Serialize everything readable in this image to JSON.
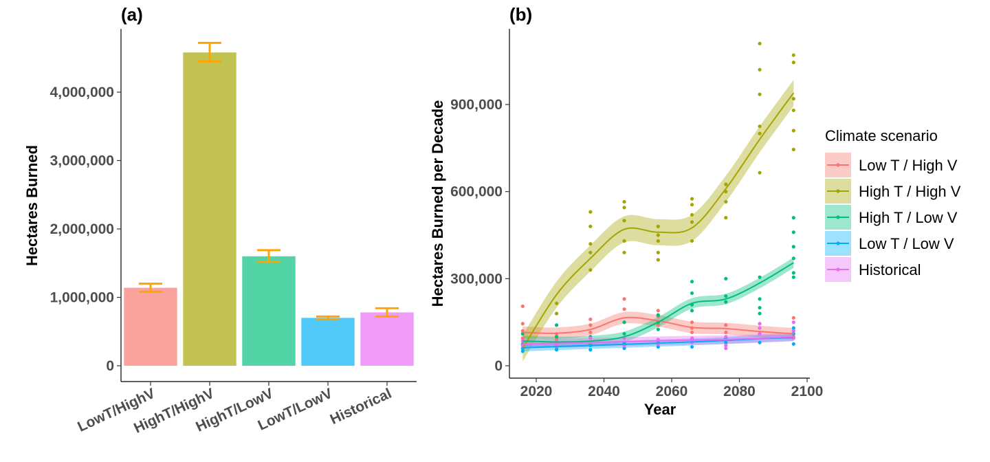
{
  "chart_data": [
    {
      "panel": "(a)",
      "type": "bar",
      "ylabel": "Hectares Burned",
      "xlabel": "",
      "categories": [
        "LowT/HighV",
        "HighT/HighV",
        "HighT/LowV",
        "LowT/LowV",
        "Historical"
      ],
      "values": [
        1140000,
        4580000,
        1600000,
        700000,
        780000
      ],
      "error_low": [
        1080000,
        4450000,
        1520000,
        680000,
        720000
      ],
      "error_high": [
        1200000,
        4720000,
        1690000,
        720000,
        840000
      ],
      "colors": [
        "#F8766D",
        "#A3A500",
        "#00BF7D",
        "#00B0F6",
        "#E76BF3"
      ],
      "error_color": "#FFA500",
      "ylim": [
        0,
        4850000
      ],
      "yticks": [
        0,
        1000000,
        2000000,
        3000000,
        4000000
      ],
      "yticklabels": [
        "0",
        "1,000,000",
        "2,000,000",
        "3,000,000",
        "4,000,000"
      ],
      "grid": false
    },
    {
      "panel": "(b)",
      "type": "scatter",
      "xlabel": "Year",
      "ylabel": "Hectares Burned per Decade",
      "xlim": [
        2012,
        2100
      ],
      "ylim": [
        -20000,
        1130000
      ],
      "xticks": [
        2020,
        2040,
        2060,
        2080,
        2100
      ],
      "yticks": [
        0,
        300000,
        600000,
        900000
      ],
      "yticklabels": [
        "0",
        "300,000",
        "600,000",
        "900,000"
      ],
      "legend_title": "Climate scenario",
      "legend_position": "right",
      "grid": false,
      "series": [
        {
          "name": "Low T / High V",
          "color": "#F8766D",
          "smooth": [
            [
              2016,
              115000
            ],
            [
              2026,
              112000
            ],
            [
              2036,
              125000
            ],
            [
              2046,
              165000
            ],
            [
              2056,
              155000
            ],
            [
              2066,
              132000
            ],
            [
              2076,
              128000
            ],
            [
              2086,
              118000
            ],
            [
              2096,
              110000
            ]
          ],
          "band": 20000,
          "points": [
            [
              2016,
              205000
            ],
            [
              2016,
              145000
            ],
            [
              2016,
              120000
            ],
            [
              2016,
              95000
            ],
            [
              2026,
              110000
            ],
            [
              2026,
              90000
            ],
            [
              2026,
              60000
            ],
            [
              2036,
              160000
            ],
            [
              2036,
              140000
            ],
            [
              2036,
              115000
            ],
            [
              2046,
              230000
            ],
            [
              2046,
              195000
            ],
            [
              2046,
              150000
            ],
            [
              2056,
              190000
            ],
            [
              2056,
              170000
            ],
            [
              2056,
              140000
            ],
            [
              2066,
              150000
            ],
            [
              2066,
              130000
            ],
            [
              2066,
              115000
            ],
            [
              2076,
              140000
            ],
            [
              2076,
              115000
            ],
            [
              2076,
              95000
            ],
            [
              2086,
              130000
            ],
            [
              2086,
              110000
            ],
            [
              2096,
              165000
            ],
            [
              2096,
              120000
            ],
            [
              2096,
              100000
            ]
          ]
        },
        {
          "name": "High T / High V",
          "color": "#A3A500",
          "smooth": [
            [
              2016,
              60000
            ],
            [
              2026,
              245000
            ],
            [
              2036,
              370000
            ],
            [
              2046,
              470000
            ],
            [
              2056,
              460000
            ],
            [
              2066,
              475000
            ],
            [
              2076,
              610000
            ],
            [
              2086,
              780000
            ],
            [
              2096,
              940000
            ]
          ],
          "band": 45000,
          "points": [
            [
              2016,
              70000
            ],
            [
              2026,
              215000
            ],
            [
              2026,
              180000
            ],
            [
              2036,
              530000
            ],
            [
              2036,
              480000
            ],
            [
              2036,
              420000
            ],
            [
              2036,
              390000
            ],
            [
              2036,
              330000
            ],
            [
              2046,
              565000
            ],
            [
              2046,
              545000
            ],
            [
              2046,
              500000
            ],
            [
              2046,
              430000
            ],
            [
              2046,
              390000
            ],
            [
              2056,
              480000
            ],
            [
              2056,
              450000
            ],
            [
              2056,
              430000
            ],
            [
              2056,
              390000
            ],
            [
              2056,
              365000
            ],
            [
              2066,
              575000
            ],
            [
              2066,
              555000
            ],
            [
              2066,
              520000
            ],
            [
              2066,
              495000
            ],
            [
              2066,
              430000
            ],
            [
              2076,
              625000
            ],
            [
              2076,
              600000
            ],
            [
              2076,
              565000
            ],
            [
              2076,
              510000
            ],
            [
              2086,
              1110000
            ],
            [
              2086,
              1020000
            ],
            [
              2086,
              935000
            ],
            [
              2086,
              825000
            ],
            [
              2086,
              800000
            ],
            [
              2086,
              665000
            ],
            [
              2096,
              1070000
            ],
            [
              2096,
              1045000
            ],
            [
              2096,
              920000
            ],
            [
              2096,
              880000
            ],
            [
              2096,
              810000
            ],
            [
              2096,
              745000
            ]
          ]
        },
        {
          "name": "High T / Low V",
          "color": "#00BF7D",
          "smooth": [
            [
              2016,
              85000
            ],
            [
              2026,
              82000
            ],
            [
              2036,
              85000
            ],
            [
              2046,
              100000
            ],
            [
              2056,
              150000
            ],
            [
              2066,
              215000
            ],
            [
              2076,
              230000
            ],
            [
              2086,
              285000
            ],
            [
              2096,
              355000
            ]
          ],
          "band": 18000,
          "points": [
            [
              2016,
              110000
            ],
            [
              2016,
              75000
            ],
            [
              2026,
              140000
            ],
            [
              2026,
              100000
            ],
            [
              2026,
              75000
            ],
            [
              2036,
              100000
            ],
            [
              2036,
              75000
            ],
            [
              2046,
              150000
            ],
            [
              2046,
              110000
            ],
            [
              2046,
              80000
            ],
            [
              2056,
              175000
            ],
            [
              2056,
              150000
            ],
            [
              2056,
              125000
            ],
            [
              2066,
              290000
            ],
            [
              2066,
              250000
            ],
            [
              2066,
              210000
            ],
            [
              2066,
              190000
            ],
            [
              2076,
              300000
            ],
            [
              2076,
              240000
            ],
            [
              2076,
              220000
            ],
            [
              2086,
              305000
            ],
            [
              2086,
              230000
            ],
            [
              2086,
              200000
            ],
            [
              2086,
              180000
            ],
            [
              2096,
              510000
            ],
            [
              2096,
              460000
            ],
            [
              2096,
              410000
            ],
            [
              2096,
              370000
            ],
            [
              2096,
              320000
            ],
            [
              2096,
              305000
            ]
          ]
        },
        {
          "name": "Low T / Low V",
          "color": "#00B0F6",
          "smooth": [
            [
              2016,
              62000
            ],
            [
              2026,
              66000
            ],
            [
              2036,
              70000
            ],
            [
              2046,
              74000
            ],
            [
              2056,
              78000
            ],
            [
              2066,
              82000
            ],
            [
              2076,
              87000
            ],
            [
              2086,
              93000
            ],
            [
              2096,
              97000
            ]
          ],
          "band": 12000,
          "points": [
            [
              2016,
              60000
            ],
            [
              2016,
              50000
            ],
            [
              2026,
              75000
            ],
            [
              2026,
              55000
            ],
            [
              2036,
              70000
            ],
            [
              2036,
              55000
            ],
            [
              2046,
              75000
            ],
            [
              2046,
              60000
            ],
            [
              2056,
              85000
            ],
            [
              2056,
              65000
            ],
            [
              2066,
              90000
            ],
            [
              2066,
              65000
            ],
            [
              2076,
              95000
            ],
            [
              2076,
              80000
            ],
            [
              2086,
              110000
            ],
            [
              2086,
              80000
            ],
            [
              2096,
              130000
            ],
            [
              2096,
              110000
            ],
            [
              2096,
              75000
            ]
          ]
        },
        {
          "name": "Historical",
          "color": "#E76BF3",
          "smooth": [
            [
              2016,
              75000
            ],
            [
              2026,
              77000
            ],
            [
              2036,
              80000
            ],
            [
              2046,
              83000
            ],
            [
              2056,
              86000
            ],
            [
              2066,
              88000
            ],
            [
              2076,
              90000
            ],
            [
              2086,
              94000
            ],
            [
              2096,
              100000
            ]
          ],
          "band": 15000,
          "points": [
            [
              2016,
              85000
            ],
            [
              2016,
              70000
            ],
            [
              2026,
              70000
            ],
            [
              2036,
              95000
            ],
            [
              2036,
              80000
            ],
            [
              2046,
              95000
            ],
            [
              2046,
              70000
            ],
            [
              2056,
              90000
            ],
            [
              2056,
              75000
            ],
            [
              2066,
              95000
            ],
            [
              2066,
              80000
            ],
            [
              2076,
              100000
            ],
            [
              2076,
              70000
            ],
            [
              2076,
              60000
            ],
            [
              2086,
              145000
            ],
            [
              2086,
              130000
            ],
            [
              2086,
              110000
            ],
            [
              2096,
              150000
            ],
            [
              2096,
              120000
            ],
            [
              2096,
              95000
            ]
          ]
        }
      ]
    }
  ]
}
